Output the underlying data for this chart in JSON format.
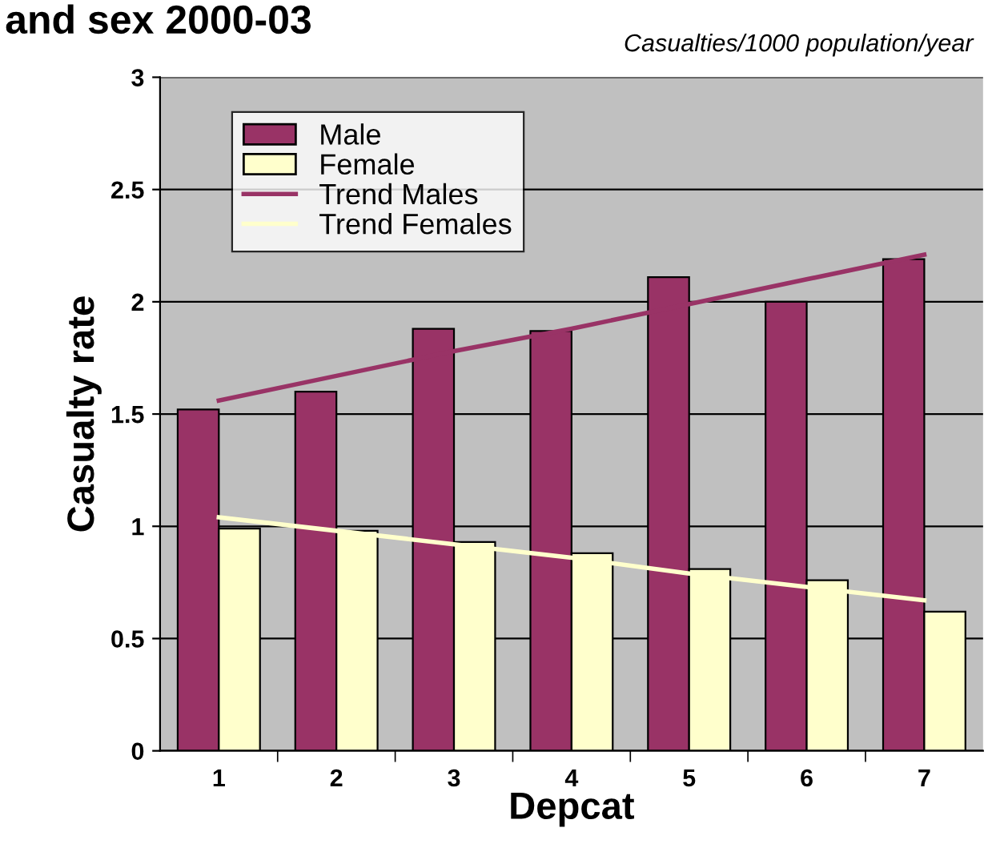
{
  "chart_data": {
    "type": "bar",
    "title": "and sex 2000-03",
    "subtitle": "Casualties/1000 population/year",
    "xlabel": "Depcat",
    "ylabel": "Casualty rate",
    "categories": [
      "1",
      "2",
      "3",
      "4",
      "5",
      "6",
      "7"
    ],
    "series": [
      {
        "name": "Male",
        "color": "#993366",
        "values": [
          1.52,
          1.6,
          1.88,
          1.87,
          2.11,
          2.0,
          2.19
        ]
      },
      {
        "name": "Female",
        "color": "#ffffcc",
        "values": [
          0.99,
          0.98,
          0.93,
          0.88,
          0.81,
          0.76,
          0.62
        ]
      },
      {
        "name": "Trend Males",
        "type": "line",
        "color": "#993366",
        "values": [
          1.56,
          1.67,
          1.78,
          1.88,
          1.99,
          2.1,
          2.21
        ]
      },
      {
        "name": "Trend Females",
        "type": "line",
        "color": "#ffffcc",
        "values": [
          1.04,
          0.98,
          0.92,
          0.86,
          0.79,
          0.73,
          0.67
        ]
      }
    ],
    "ylim": [
      0,
      3
    ],
    "yticks": [
      0,
      0.5,
      1,
      1.5,
      2,
      2.5,
      3
    ],
    "grid": "y",
    "legend": "top left"
  }
}
